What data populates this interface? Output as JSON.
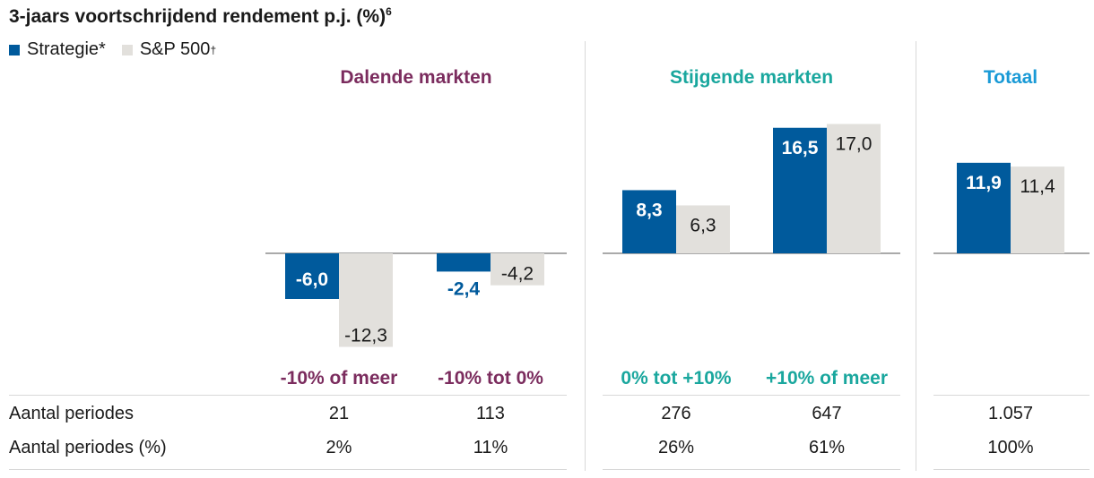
{
  "title": "3-jaars voortschrijdend rendement p.j. (%)",
  "title_footnote": "6",
  "legend": [
    {
      "name": "Strategie*",
      "color": "#005a9c"
    },
    {
      "name": "S&P 500",
      "footnote": "†",
      "color": "#e2e0dc"
    }
  ],
  "chart_data": {
    "type": "bar",
    "title": "3-jaars voortschrijdend rendement p.j. (%)",
    "groups": [
      {
        "name": "Dalende markten",
        "color": "#7b2c5e",
        "categories": [
          "-10% of meer",
          "-10% tot 0%"
        ]
      },
      {
        "name": "Stijgende markten",
        "color": "#1aa79e",
        "categories": [
          "0% tot +10%",
          "+10% of meer"
        ]
      },
      {
        "name": "Totaal",
        "color": "#1a9ad6",
        "categories": [
          ""
        ]
      }
    ],
    "categories": [
      "-10% of meer",
      "-10% tot 0%",
      "0% tot +10%",
      "+10% of meer",
      "Totaal"
    ],
    "series": [
      {
        "name": "Strategie*",
        "color": "#005a9c",
        "values": [
          -6.0,
          -2.4,
          8.3,
          16.5,
          11.9
        ],
        "labels": [
          "-6,0",
          "-2,4",
          "8,3",
          "16,5",
          "11,9"
        ]
      },
      {
        "name": "S&P 500",
        "color": "#e2e0dc",
        "values": [
          -12.3,
          -4.2,
          6.3,
          17.0,
          11.4
        ],
        "labels": [
          "-12,3",
          "-4,2",
          "6,3",
          "17,0",
          "11,4"
        ]
      }
    ],
    "grid": false,
    "legend_position": "top-left"
  },
  "table": {
    "rows": [
      {
        "label": "Aantal periodes",
        "values": [
          "21",
          "113",
          "276",
          "647",
          "1.057"
        ]
      },
      {
        "label": "Aantal periodes (%)",
        "values": [
          "2%",
          "11%",
          "26%",
          "61%",
          "100%"
        ]
      }
    ]
  }
}
